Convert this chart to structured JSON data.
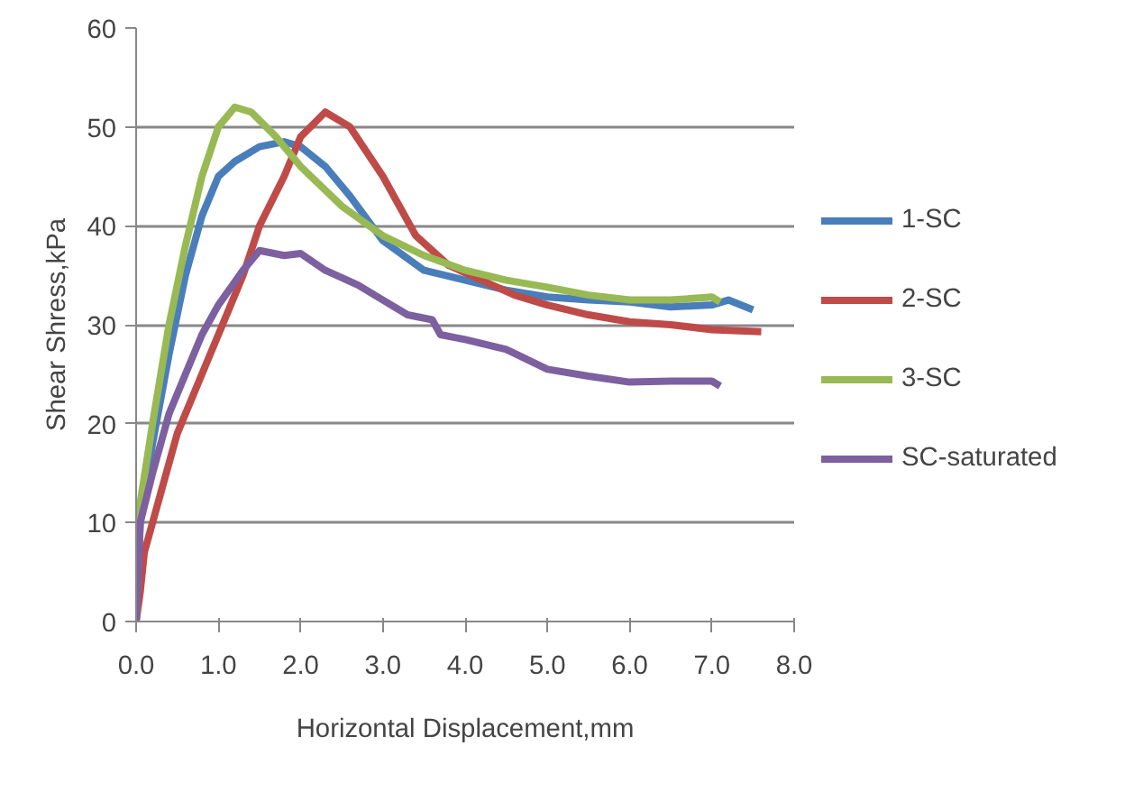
{
  "chart_data": {
    "type": "line",
    "xlabel": "Horizontal Displacement,mm",
    "ylabel": "Shear Shress,kPa",
    "xlim": [
      0,
      8
    ],
    "ylim": [
      0,
      60
    ],
    "xticks": [
      {
        "value": 0,
        "label": "0.0"
      },
      {
        "value": 1,
        "label": "1.0"
      },
      {
        "value": 2,
        "label": "2.0"
      },
      {
        "value": 3,
        "label": "3.0"
      },
      {
        "value": 4,
        "label": "4.0"
      },
      {
        "value": 5,
        "label": "5.0"
      },
      {
        "value": 6,
        "label": "6.0"
      },
      {
        "value": 7,
        "label": "7.0"
      },
      {
        "value": 8,
        "label": "8.0"
      }
    ],
    "yticks": [
      0,
      10,
      20,
      30,
      40,
      50,
      60
    ],
    "grid": "y",
    "legend": "right",
    "series": [
      {
        "name": "1-SC",
        "color": "#4a7ebb",
        "x": [
          0,
          0.05,
          0.2,
          0.4,
          0.6,
          0.8,
          1.0,
          1.2,
          1.5,
          1.8,
          2.0,
          2.3,
          2.6,
          3.0,
          3.5,
          4.0,
          4.5,
          5.0,
          5.5,
          6.0,
          6.5,
          7.0,
          7.2,
          7.5
        ],
        "values": [
          0,
          10,
          18,
          27,
          35,
          41,
          45,
          46.5,
          48,
          48.5,
          48,
          46,
          43,
          38.5,
          35.5,
          34.5,
          33.5,
          32.8,
          32.5,
          32.3,
          31.8,
          32,
          32.5,
          31.5
        ]
      },
      {
        "name": "2-SC",
        "color": "#be4b48",
        "x": [
          0,
          0.05,
          0.1,
          0.3,
          0.5,
          0.8,
          1.0,
          1.3,
          1.5,
          1.8,
          2.0,
          2.3,
          2.6,
          3.0,
          3.4,
          3.8,
          4.2,
          4.6,
          5.0,
          5.5,
          6.0,
          6.5,
          7.0,
          7.6
        ],
        "values": [
          0,
          3,
          7,
          13,
          19,
          25,
          29,
          35,
          40,
          45,
          49,
          51.5,
          50,
          45,
          39,
          36,
          34.5,
          33,
          32,
          31,
          30.3,
          30,
          29.5,
          29.3
        ]
      },
      {
        "name": "3-SC",
        "color": "#98b954",
        "x": [
          0,
          0.05,
          0.2,
          0.4,
          0.6,
          0.8,
          1.0,
          1.2,
          1.4,
          1.7,
          2.0,
          2.5,
          3.0,
          3.5,
          4.0,
          4.5,
          5.0,
          5.5,
          6.0,
          6.5,
          7.0,
          7.1
        ],
        "values": [
          0,
          12,
          20,
          30,
          38,
          45,
          50,
          52,
          51.5,
          49,
          46,
          42,
          39,
          37,
          35.5,
          34.5,
          33.8,
          33,
          32.5,
          32.5,
          32.8,
          32.3
        ]
      },
      {
        "name": "SC-saturated",
        "color": "#7d60a0",
        "x": [
          0,
          0.05,
          0.2,
          0.4,
          0.6,
          0.8,
          1.0,
          1.3,
          1.5,
          1.8,
          2.0,
          2.3,
          2.7,
          3.0,
          3.3,
          3.6,
          3.7,
          4.0,
          4.5,
          5.0,
          5.5,
          6.0,
          6.5,
          7.0,
          7.1
        ],
        "values": [
          0,
          10,
          15,
          21,
          25,
          29,
          32,
          35.5,
          37.5,
          37,
          37.2,
          35.5,
          34,
          32.5,
          31,
          30.5,
          29,
          28.5,
          27.5,
          25.5,
          24.8,
          24.2,
          24.3,
          24.3,
          23.8
        ]
      }
    ]
  }
}
